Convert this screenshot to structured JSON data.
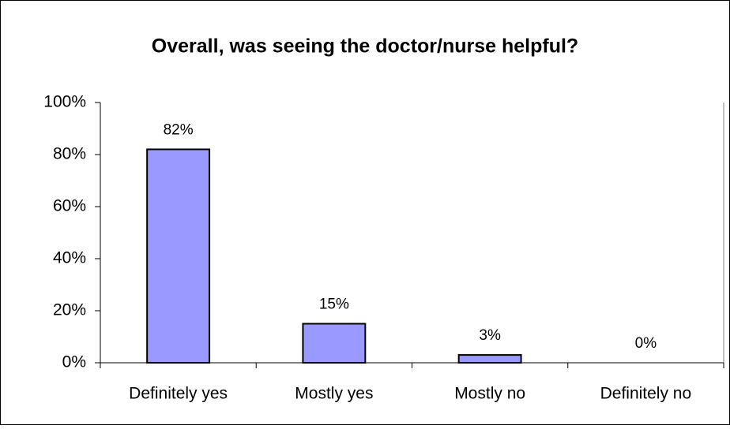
{
  "chart_data": {
    "type": "bar",
    "title": "Overall, was seeing the doctor/nurse helpful?",
    "categories": [
      "Definitely yes",
      "Mostly yes",
      "Mostly no",
      "Definitely no"
    ],
    "values": [
      82,
      15,
      3,
      0
    ],
    "value_labels": [
      "82%",
      "15%",
      "3%",
      "0%"
    ],
    "color": "#9999ff",
    "ylim": [
      0,
      100
    ],
    "yticks": [
      {
        "value": 0,
        "label": "0%"
      },
      {
        "value": 20,
        "label": "20%"
      },
      {
        "value": 40,
        "label": "40%"
      },
      {
        "value": 60,
        "label": "60%"
      },
      {
        "value": 80,
        "label": "80%"
      },
      {
        "value": 100,
        "label": "100%"
      }
    ],
    "grid": false
  }
}
